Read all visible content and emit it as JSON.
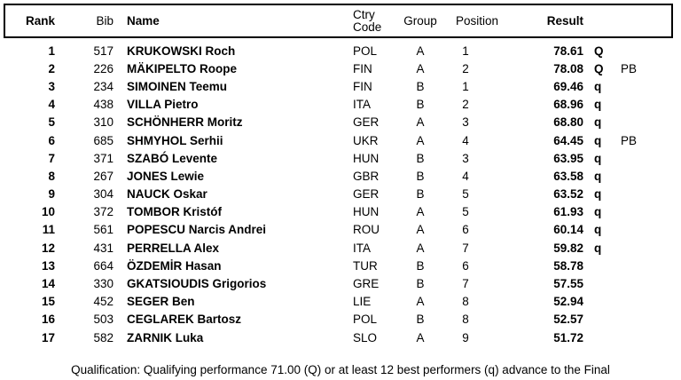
{
  "colors": {
    "text": "#000000",
    "background": "#ffffff",
    "border": "#000000"
  },
  "table": {
    "columns": {
      "rank": "Rank",
      "bib": "Bib",
      "name": "Name",
      "ctry_line1": "Ctry",
      "ctry_line2": "Code",
      "group": "Group",
      "position": "Position",
      "result": "Result"
    },
    "rows": [
      {
        "rank": "1",
        "bib": "517",
        "name": "KRUKOWSKI Roch",
        "ctry": "POL",
        "group": "A",
        "position": "1",
        "result": "78.61",
        "mark": "Q",
        "note": ""
      },
      {
        "rank": "2",
        "bib": "226",
        "name": "MÄKIPELTO Roope",
        "ctry": "FIN",
        "group": "A",
        "position": "2",
        "result": "78.08",
        "mark": "Q",
        "note": "PB"
      },
      {
        "rank": "3",
        "bib": "234",
        "name": "SIMOINEN Teemu",
        "ctry": "FIN",
        "group": "B",
        "position": "1",
        "result": "69.46",
        "mark": "q",
        "note": ""
      },
      {
        "rank": "4",
        "bib": "438",
        "name": "VILLA Pietro",
        "ctry": "ITA",
        "group": "B",
        "position": "2",
        "result": "68.96",
        "mark": "q",
        "note": ""
      },
      {
        "rank": "5",
        "bib": "310",
        "name": "SCHÖNHERR Moritz",
        "ctry": "GER",
        "group": "A",
        "position": "3",
        "result": "68.80",
        "mark": "q",
        "note": ""
      },
      {
        "rank": "6",
        "bib": "685",
        "name": "SHMYHOL Serhii",
        "ctry": "UKR",
        "group": "A",
        "position": "4",
        "result": "64.45",
        "mark": "q",
        "note": "PB"
      },
      {
        "rank": "7",
        "bib": "371",
        "name": "SZABÓ Levente",
        "ctry": "HUN",
        "group": "B",
        "position": "3",
        "result": "63.95",
        "mark": "q",
        "note": ""
      },
      {
        "rank": "8",
        "bib": "267",
        "name": "JONES Lewie",
        "ctry": "GBR",
        "group": "B",
        "position": "4",
        "result": "63.58",
        "mark": "q",
        "note": ""
      },
      {
        "rank": "9",
        "bib": "304",
        "name": "NAUCK Oskar",
        "ctry": "GER",
        "group": "B",
        "position": "5",
        "result": "63.52",
        "mark": "q",
        "note": ""
      },
      {
        "rank": "10",
        "bib": "372",
        "name": "TOMBOR Kristóf",
        "ctry": "HUN",
        "group": "A",
        "position": "5",
        "result": "61.93",
        "mark": "q",
        "note": ""
      },
      {
        "rank": "11",
        "bib": "561",
        "name": "POPESCU Narcis Andrei",
        "ctry": "ROU",
        "group": "A",
        "position": "6",
        "result": "60.14",
        "mark": "q",
        "note": ""
      },
      {
        "rank": "12",
        "bib": "431",
        "name": "PERRELLA Alex",
        "ctry": "ITA",
        "group": "A",
        "position": "7",
        "result": "59.82",
        "mark": "q",
        "note": ""
      },
      {
        "rank": "13",
        "bib": "664",
        "name": "ÖZDEMİR Hasan",
        "ctry": "TUR",
        "group": "B",
        "position": "6",
        "result": "58.78",
        "mark": "",
        "note": ""
      },
      {
        "rank": "14",
        "bib": "330",
        "name": "GKATSIOUDIS Grigorios",
        "ctry": "GRE",
        "group": "B",
        "position": "7",
        "result": "57.55",
        "mark": "",
        "note": ""
      },
      {
        "rank": "15",
        "bib": "452",
        "name": "SEGER Ben",
        "ctry": "LIE",
        "group": "A",
        "position": "8",
        "result": "52.94",
        "mark": "",
        "note": ""
      },
      {
        "rank": "16",
        "bib": "503",
        "name": "CEGLAREK Bartosz",
        "ctry": "POL",
        "group": "B",
        "position": "8",
        "result": "52.57",
        "mark": "",
        "note": ""
      },
      {
        "rank": "17",
        "bib": "582",
        "name": "ZARNIK Luka",
        "ctry": "SLO",
        "group": "A",
        "position": "9",
        "result": "51.72",
        "mark": "",
        "note": ""
      }
    ]
  },
  "footer": {
    "text": "Qualification: Qualifying performance 71.00 (Q) or at least 12 best performers (q) advance to the Final"
  }
}
